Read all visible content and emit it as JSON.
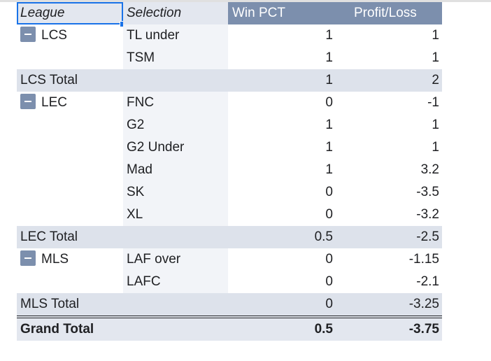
{
  "header": {
    "league": "League",
    "selection": "Selection",
    "win_pct": "Win PCT",
    "profit_loss": "Profit/Loss"
  },
  "groups": [
    {
      "league": "LCS",
      "rows": [
        {
          "selection": "TL under",
          "win": "1",
          "pl": "1"
        },
        {
          "selection": "TSM",
          "win": "1",
          "pl": "1"
        }
      ],
      "total_label": "LCS Total",
      "total_win": "1",
      "total_pl": "2"
    },
    {
      "league": "LEC",
      "rows": [
        {
          "selection": "FNC",
          "win": "0",
          "pl": "-1"
        },
        {
          "selection": "G2",
          "win": "1",
          "pl": "1"
        },
        {
          "selection": "G2 Under",
          "win": "1",
          "pl": "1"
        },
        {
          "selection": "Mad",
          "win": "1",
          "pl": "3.2"
        },
        {
          "selection": "SK",
          "win": "0",
          "pl": "-3.5"
        },
        {
          "selection": "XL",
          "win": "0",
          "pl": "-3.2"
        }
      ],
      "total_label": "LEC Total",
      "total_win": "0.5",
      "total_pl": "-2.5"
    },
    {
      "league": "MLS",
      "rows": [
        {
          "selection": "LAF over",
          "win": "0",
          "pl": "-1.15"
        },
        {
          "selection": "LAFC",
          "win": "0",
          "pl": "-2.1"
        }
      ],
      "total_label": "MLS Total",
      "total_win": "0",
      "total_pl": "-3.25"
    }
  ],
  "grand_total": {
    "label": "Grand Total",
    "win": "0.5",
    "pl": "-3.75"
  },
  "colors": {
    "header_value_bg": "#7c8fad",
    "header_row_bg": "#e3e7ef",
    "total_row_bg": "#dde2eb",
    "selection_accent": "#1a73e8"
  },
  "icons": {
    "collapse": "minus-square-icon"
  }
}
